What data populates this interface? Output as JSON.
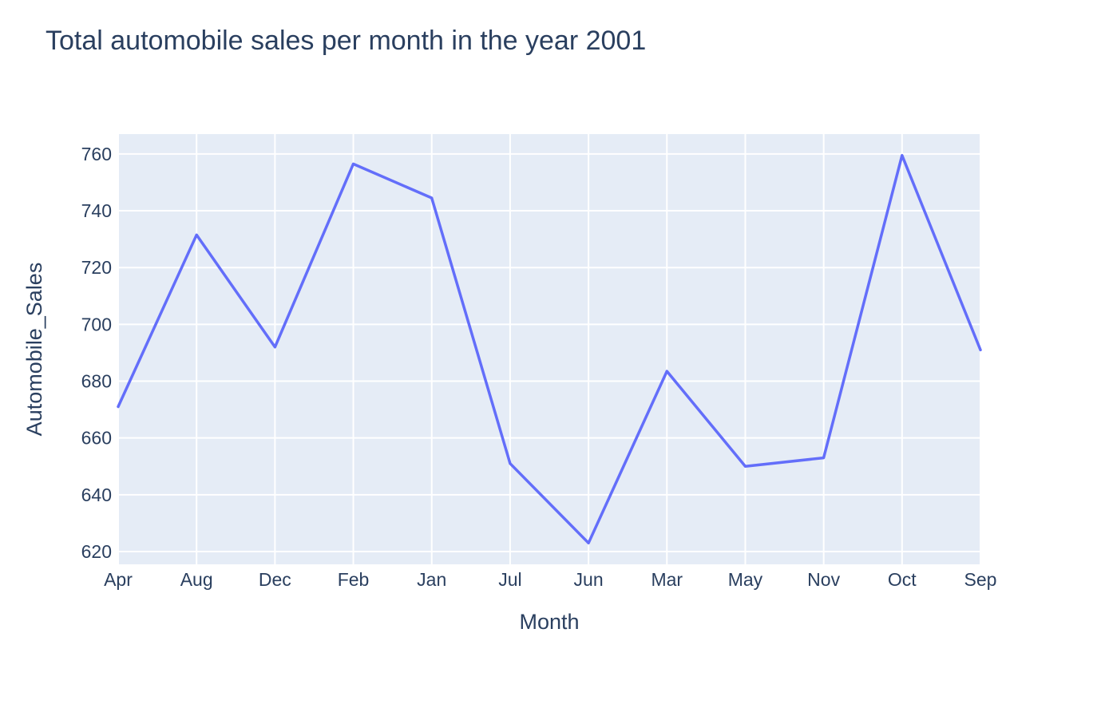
{
  "chart_data": {
    "type": "line",
    "title": "Total automobile sales per month in the year 2001",
    "xlabel": "Month",
    "ylabel": "Automobile_Sales",
    "categories": [
      "Apr",
      "Aug",
      "Dec",
      "Feb",
      "Jan",
      "Jul",
      "Jun",
      "Mar",
      "May",
      "Nov",
      "Oct",
      "Sep"
    ],
    "series": [
      {
        "values": [
          671,
          731.5,
          692,
          756.5,
          744.5,
          651,
          623,
          683.5,
          650,
          653,
          759.5,
          691
        ]
      }
    ],
    "ylim": [
      615.5,
      767
    ],
    "yticks": [
      620,
      640,
      660,
      680,
      700,
      720,
      740,
      760
    ],
    "grid": true,
    "legend": "none",
    "colors": {
      "plot_background": "#e5ecf6",
      "grid": "#ffffff",
      "line": "#636efa",
      "text": "#2a3f5f"
    }
  }
}
